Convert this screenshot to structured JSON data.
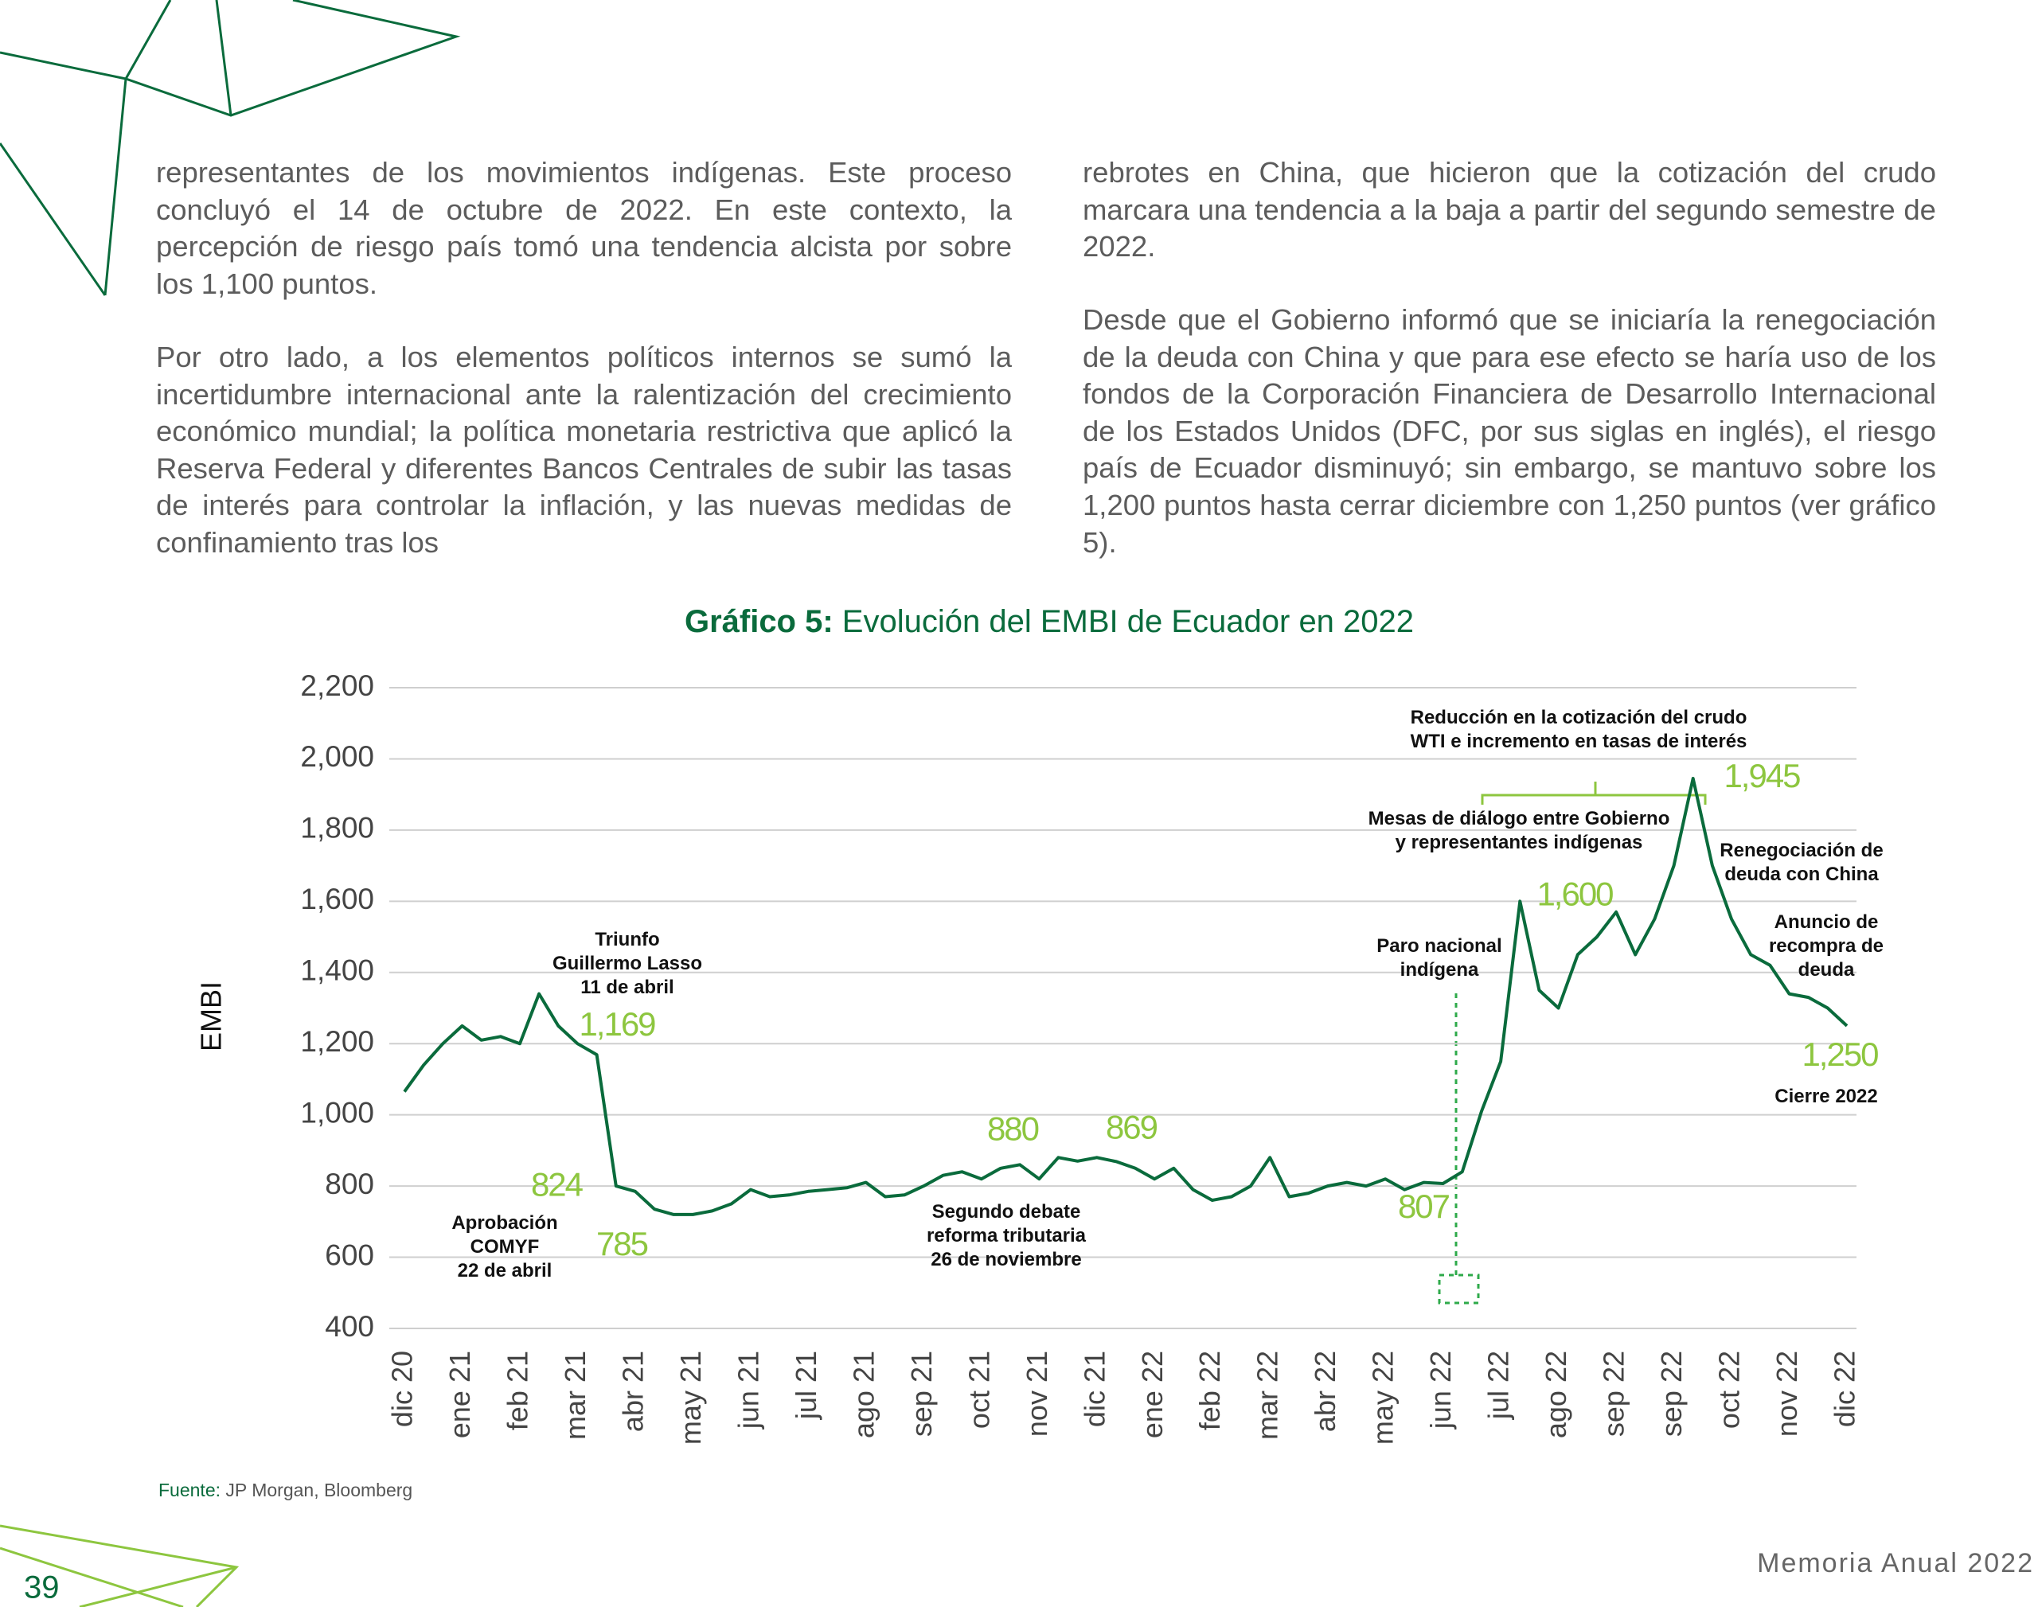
{
  "text": {
    "left": [
      "representantes de los movimientos indígenas. Este proceso concluyó el 14 de octubre de 2022. En este contexto, la percepción de riesgo país tomó una tendencia alcista por sobre los 1,100 puntos.",
      "Por otro lado, a los elementos políticos internos se sumó la incertidumbre internacional ante la ralentización del crecimiento económico mundial; la política monetaria restrictiva que aplicó la Reserva Federal y diferentes Bancos Centrales de subir las tasas de interés para controlar la inflación, y las nuevas medidas de confinamiento tras los"
    ],
    "right": [
      "rebrotes en China, que hicieron que la cotización del crudo marcara una tendencia a la baja a partir del segundo semestre de 2022.",
      "Desde que el Gobierno informó que se iniciaría la renegociación de la deuda con China y que para ese efecto se haría uso de los fondos de la Corporación Financiera de Desarrollo Internacional de los Estados Unidos (DFC, por sus siglas en inglés), el riesgo país de Ecuador disminuyó; sin embargo, se mantuvo sobre los 1,200 puntos hasta cerrar diciembre con 1,250 puntos (ver gráfico 5)."
    ]
  },
  "chart_data": {
    "type": "line",
    "title_prefix": "Gráfico 5:",
    "title": " Evolución del EMBI de Ecuador en 2022",
    "ylabel": "EMBI",
    "color": "#0a6b3c",
    "grid": true,
    "ylim": [
      400,
      2200
    ],
    "yticks": [
      400,
      600,
      800,
      {
        "value": 1000,
        "label": "1,000"
      },
      {
        "value": 1200,
        "label": "1,200"
      },
      {
        "value": 1400,
        "label": "1,400"
      },
      {
        "value": 1600,
        "label": "1,600"
      },
      {
        "value": 1800,
        "label": "1,800"
      },
      {
        "value": 2000,
        "label": "2,000"
      },
      {
        "value": 2200,
        "label": "2,200"
      }
    ],
    "categories": [
      "dic 20",
      null,
      null,
      "ene 21",
      null,
      null,
      "feb 21",
      null,
      null,
      "mar 21",
      null,
      null,
      "abr 21",
      null,
      null,
      "may 21",
      null,
      null,
      "jun 21",
      null,
      null,
      "jul 21",
      null,
      null,
      "ago 21",
      null,
      null,
      "sep 21",
      null,
      null,
      "oct 21",
      null,
      null,
      "nov 21",
      null,
      null,
      "dic 21",
      null,
      null,
      "ene 22",
      null,
      null,
      "feb 22",
      null,
      null,
      "mar 22",
      null,
      null,
      "abr 22",
      null,
      null,
      "may 22",
      null,
      null,
      "jun 22",
      null,
      null,
      "jul 22",
      null,
      null,
      "ago 22",
      null,
      null,
      "sep 22",
      null,
      null,
      "sep 22",
      null,
      null,
      "oct 22",
      null,
      null,
      "nov 22",
      null,
      null,
      "dic 22"
    ],
    "values": [
      1065,
      1140,
      1200,
      1250,
      1210,
      1220,
      1200,
      1340,
      1250,
      1200,
      1169,
      800,
      785,
      735,
      720,
      720,
      730,
      750,
      790,
      770,
      775,
      785,
      790,
      795,
      810,
      770,
      775,
      800,
      830,
      840,
      820,
      850,
      860,
      820,
      880,
      870,
      880,
      869,
      850,
      820,
      850,
      790,
      760,
      770,
      800,
      880,
      770,
      780,
      800,
      810,
      800,
      820,
      790,
      810,
      807,
      840,
      1010,
      1150,
      1600,
      1350,
      1300,
      1450,
      1500,
      1570,
      1450,
      1550,
      1700,
      1945,
      1700,
      1550,
      1450,
      1420,
      1340,
      1330,
      1300,
      1250
    ],
    "highlights": [
      {
        "value": 1169,
        "label": "1,169"
      },
      {
        "value": 824,
        "label": "824"
      },
      {
        "value": 785,
        "label": "785"
      },
      {
        "value": 880,
        "label": "880"
      },
      {
        "value": 869,
        "label": "869"
      },
      {
        "value": 807,
        "label": "807"
      },
      {
        "value": 1600,
        "label": "1,600"
      },
      {
        "value": 1945,
        "label": "1,945"
      },
      {
        "value": 1250,
        "label": "1,250"
      }
    ],
    "annotations": [
      [
        "Triunfo",
        "Guillermo Lasso",
        "11 de abril"
      ],
      [
        "Aprobación",
        "COMYF",
        "22 de abril"
      ],
      [
        "Segundo debate",
        "reforma tributaria",
        "26 de noviembre"
      ],
      [
        "Paro nacional",
        "indígena"
      ],
      [
        "Mesas de diálogo entre Gobierno",
        "y representantes indígenas"
      ],
      [
        "Reducción en la cotización del crudo",
        "WTI e incremento en tasas de interés"
      ],
      [
        "Renegociación de",
        "deuda con China"
      ],
      [
        "Anuncio de",
        "recompra de",
        "deuda"
      ],
      [
        "Cierre 2022"
      ]
    ]
  },
  "source": {
    "label": "Fuente:",
    "text": " JP Morgan, Bloomberg"
  },
  "footer": {
    "title": "Memoria Anual 2022",
    "page": "39"
  }
}
